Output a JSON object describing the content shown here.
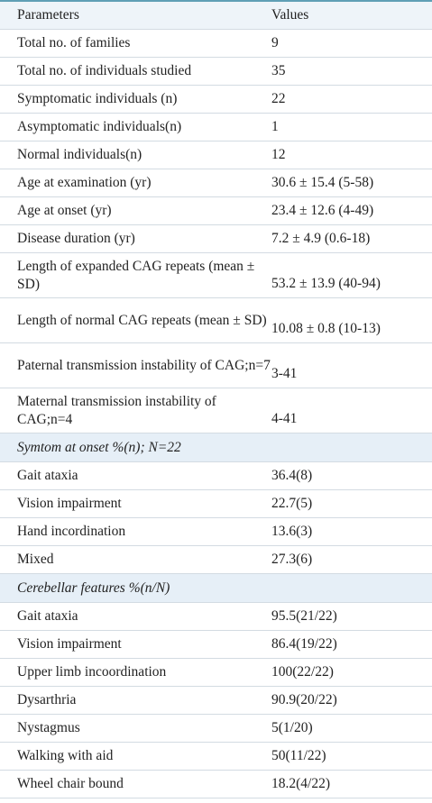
{
  "table": {
    "header": [
      "Parameters",
      "Values"
    ],
    "rows": [
      [
        "Total no. of families",
        "9"
      ],
      [
        "Total no. of individuals studied",
        "35"
      ],
      [
        "Symptomatic individuals (n)",
        "22"
      ],
      [
        "Asymptomatic individuals(n)",
        "1"
      ],
      [
        "Normal individuals(n)",
        "12"
      ],
      [
        "Age at examination (yr)",
        "30.6 ± 15.4 (5-58)"
      ],
      [
        "Age at onset (yr)",
        "23.4 ± 12.6 (4-49)"
      ],
      [
        "Disease duration (yr)",
        "7.2 ± 4.9 (0.6-18)"
      ],
      [
        "Length of expanded CAG repeats (mean ± SD)",
        "53.2 ± 13.9 (40-94)"
      ],
      [
        "Length of normal CAG repeats (mean ± SD)",
        "10.08 ± 0.8 (10-13)"
      ],
      [
        "Paternal transmission instability of CAG;n=7",
        "3-41"
      ],
      [
        "Maternal transmission instability of CAG;n=4",
        "4-41"
      ]
    ],
    "sections": [
      {
        "title": "Symtom at onset %(n); N=22",
        "rows": [
          [
            "Gait ataxia",
            "36.4(8)"
          ],
          [
            "Vision impairment",
            "22.7(5)"
          ],
          [
            "Hand incordination",
            "13.6(3)"
          ],
          [
            "Mixed",
            "27.3(6)"
          ]
        ]
      },
      {
        "title": "Cerebellar features %(n/N)",
        "rows": [
          [
            "Gait ataxia",
            "95.5(21/22)"
          ],
          [
            "Vision impairment",
            "86.4(19/22)"
          ],
          [
            "Upper limb incoordination",
            "100(22/22)"
          ],
          [
            "Dysarthria",
            "90.9(20/22)"
          ],
          [
            "Nystagmus",
            "5(1/20)"
          ],
          [
            "Walking with aid",
            "50(11/22)"
          ],
          [
            "Wheel chair bound",
            "18.2(4/22)"
          ]
        ]
      }
    ]
  }
}
